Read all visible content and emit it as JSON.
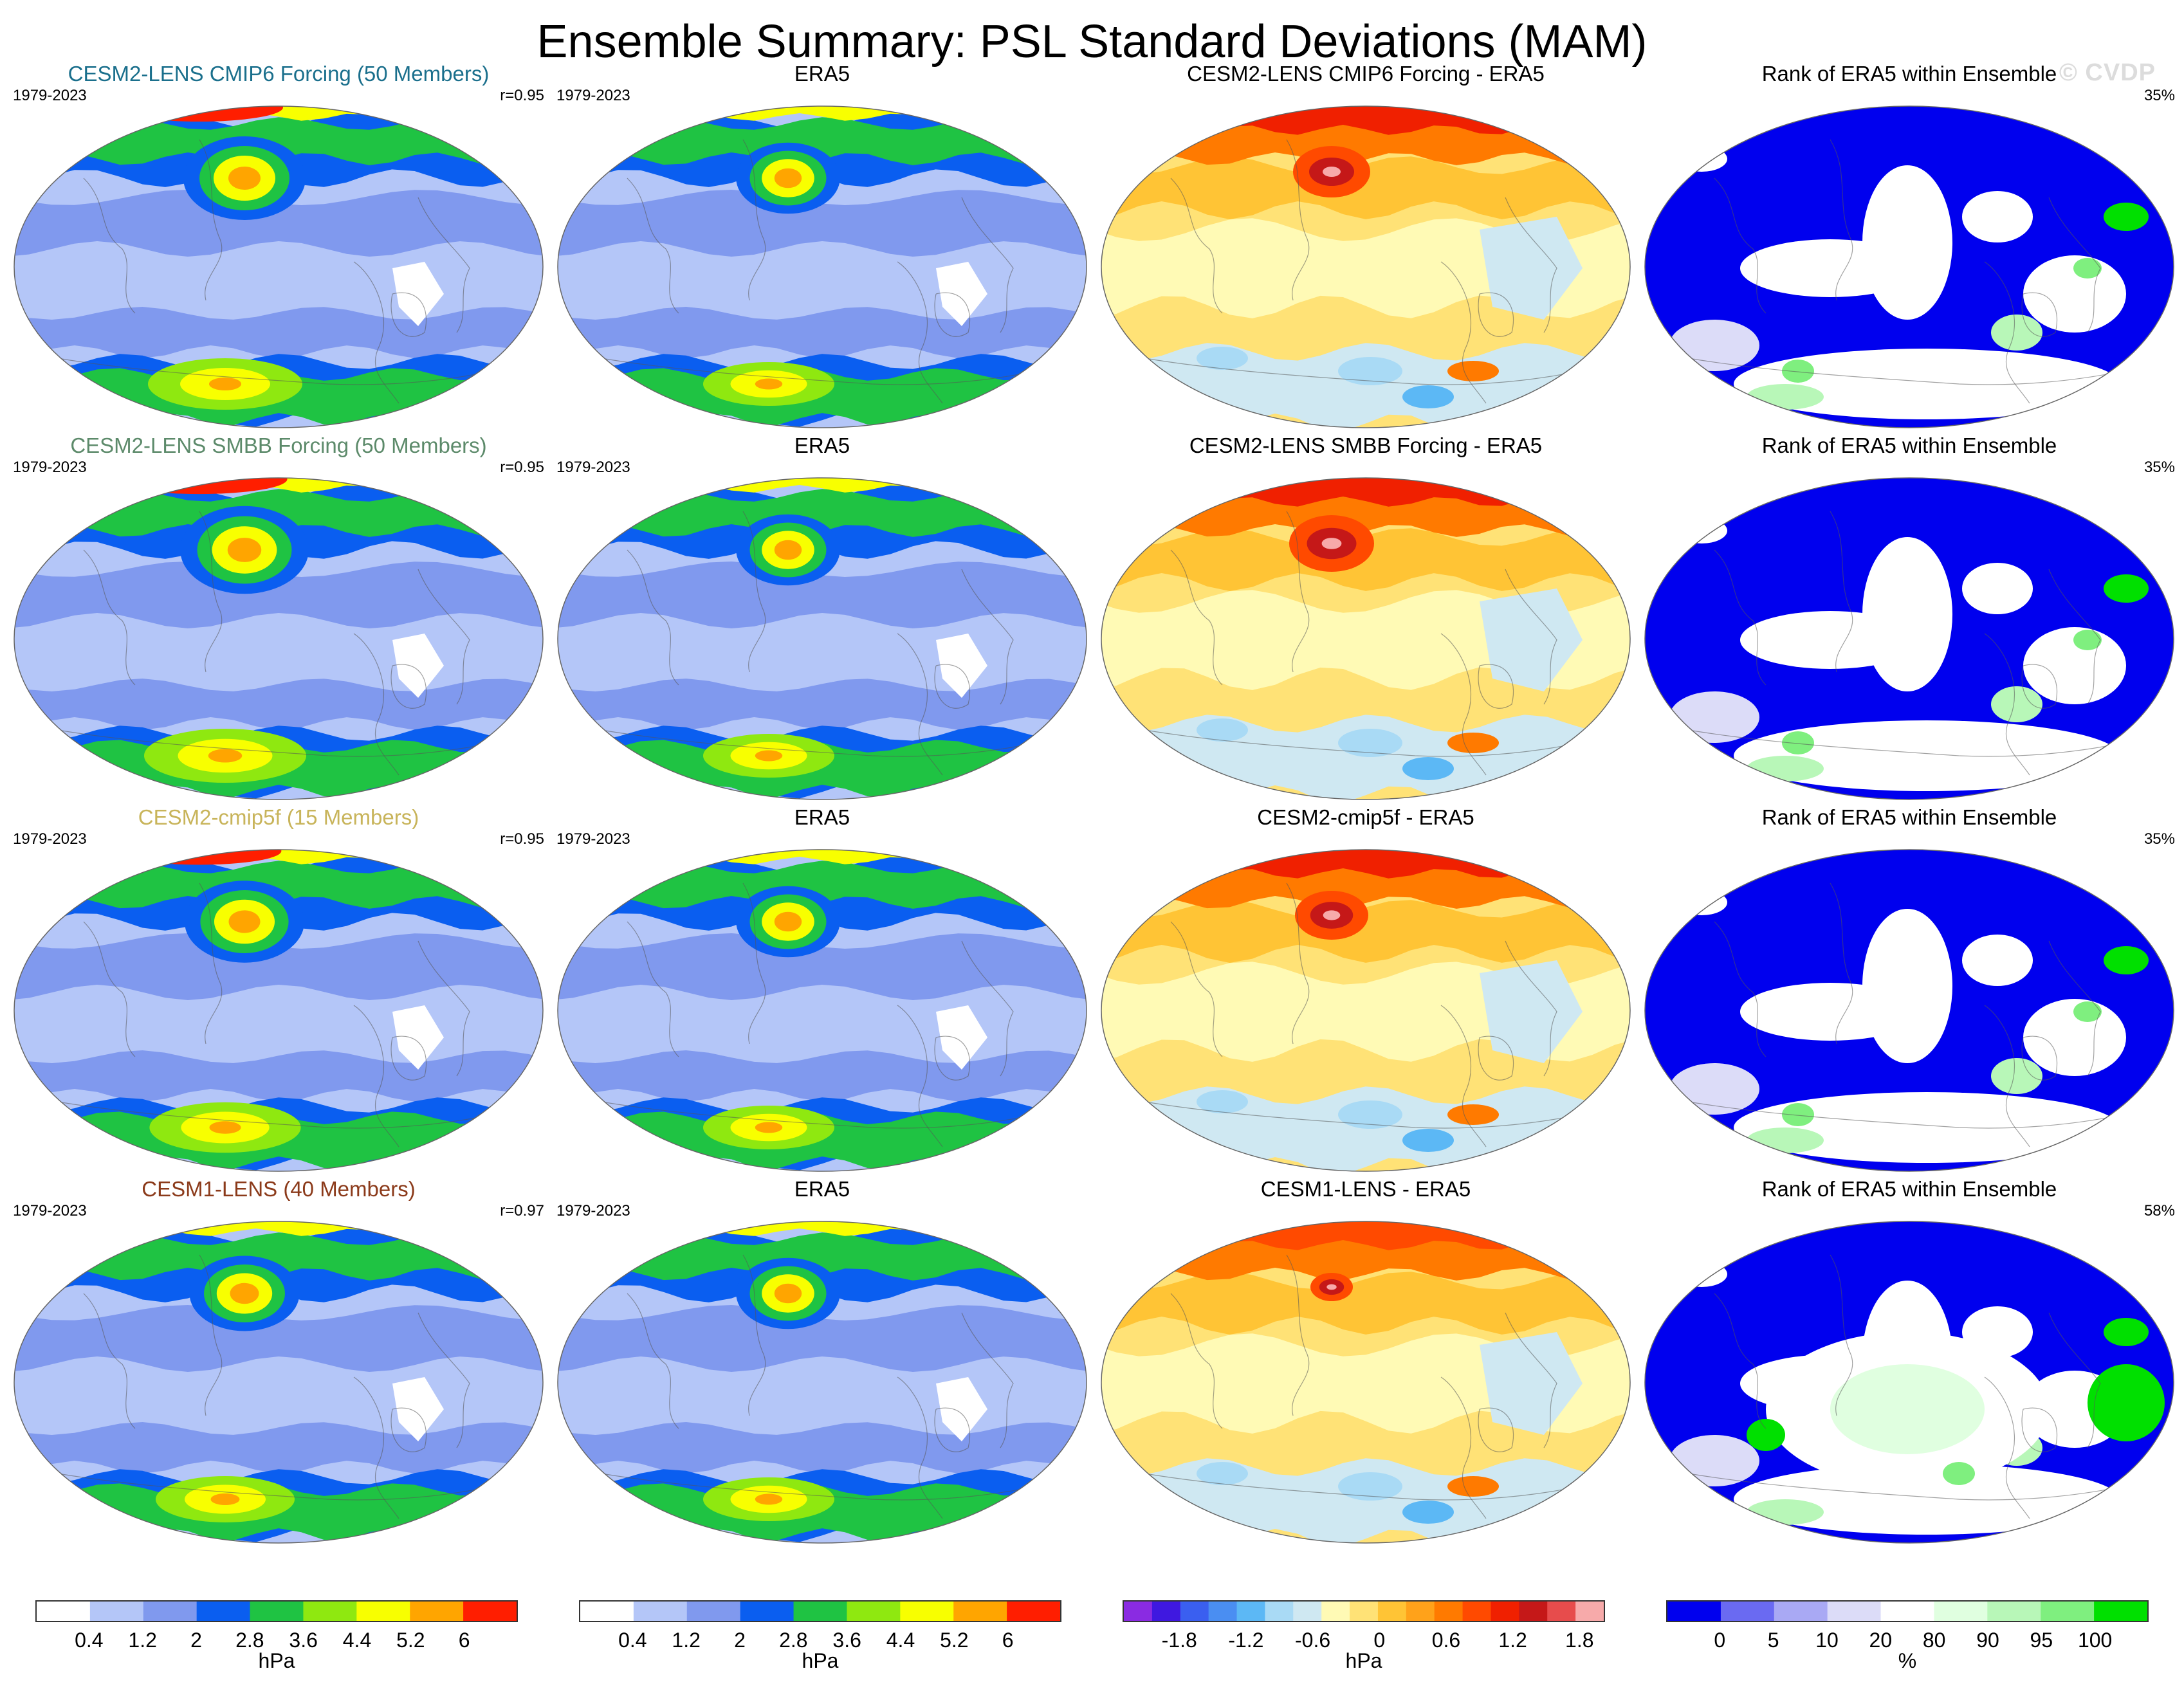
{
  "title": "Ensemble Summary: PSL Standard Deviations (MAM)",
  "watermark": "© CVDP",
  "colors": {
    "sd": [
      "#ffffff",
      "#b4c6f8",
      "#8099ee",
      "#0a5ef0",
      "#1fc343",
      "#8fe810",
      "#f8ff00",
      "#ffa500",
      "#ff1e00"
    ],
    "diff": [
      "#8a2be2",
      "#3f18e0",
      "#3a5ff0",
      "#4a8ef2",
      "#5cb8f5",
      "#a9daf5",
      "#cfe8f2",
      "#fffab5",
      "#ffe276",
      "#ffc435",
      "#ffa21a",
      "#ff7a00",
      "#ff4a00",
      "#f02000",
      "#c51818",
      "#e74c4c",
      "#f7aaaa"
    ],
    "rank": [
      "#0000ee",
      "#6a6af2",
      "#a9a9f4",
      "#dcdcf8",
      "#ffffff",
      "#e0ffe0",
      "#b8f7b8",
      "#7fef7f",
      "#00e000"
    ]
  },
  "colorbars": {
    "sd_ticks": [
      "0.4",
      "1.2",
      "2",
      "2.8",
      "3.6",
      "4.4",
      "5.2",
      "6"
    ],
    "diff_ticks": [
      "-1.8",
      "-1.2",
      "-0.6",
      "0",
      "0.6",
      "1.2",
      "1.8"
    ],
    "rank_ticks": [
      "0",
      "5",
      "10",
      "20",
      "80",
      "90",
      "95",
      "100"
    ],
    "sd_unit": "hPa",
    "diff_unit": "hPa",
    "rank_unit": "%"
  },
  "chart_data": [
    {
      "type": "heatmap",
      "row_label": "CESM2-LENS CMIP6 Forcing (50 Members)",
      "title_color": "#1a6f8c",
      "panels": [
        {
          "title": "CESM2-LENS CMIP6 Forcing (50 Members)",
          "left_label": "1979-2023",
          "right_label": "r=0.95",
          "kind": "sd",
          "strength": 1.0
        },
        {
          "title": "ERA5",
          "left_label": "1979-2023",
          "right_label": "",
          "kind": "sd",
          "strength": 0.85
        },
        {
          "title": "CESM2-LENS CMIP6 Forcing - ERA5",
          "left_label": "",
          "right_label": "",
          "kind": "diff",
          "strength": 1.0
        },
        {
          "title": "Rank of ERA5 within Ensemble",
          "left_label": "",
          "right_label": "35%",
          "kind": "rank",
          "strength": 0.35
        }
      ]
    },
    {
      "type": "heatmap",
      "row_label": "CESM2-LENS SMBB Forcing (50 Members)",
      "title_color": "#5c8a6a",
      "panels": [
        {
          "title": "CESM2-LENS SMBB Forcing (50 Members)",
          "left_label": "1979-2023",
          "right_label": "r=0.95",
          "kind": "sd",
          "strength": 1.05
        },
        {
          "title": "ERA5",
          "left_label": "1979-2023",
          "right_label": "",
          "kind": "sd",
          "strength": 0.85
        },
        {
          "title": "CESM2-LENS SMBB Forcing - ERA5",
          "left_label": "",
          "right_label": "",
          "kind": "diff",
          "strength": 1.1
        },
        {
          "title": "Rank of ERA5 within Ensemble",
          "left_label": "",
          "right_label": "35%",
          "kind": "rank",
          "strength": 0.35
        }
      ]
    },
    {
      "type": "heatmap",
      "row_label": "CESM2-cmip5f (15 Members)",
      "title_color": "#c8b45a",
      "panels": [
        {
          "title": "CESM2-cmip5f (15 Members)",
          "left_label": "1979-2023",
          "right_label": "r=0.95",
          "kind": "sd",
          "strength": 0.98
        },
        {
          "title": "ERA5",
          "left_label": "1979-2023",
          "right_label": "",
          "kind": "sd",
          "strength": 0.85
        },
        {
          "title": "CESM2-cmip5f - ERA5",
          "left_label": "",
          "right_label": "",
          "kind": "diff",
          "strength": 0.95
        },
        {
          "title": "Rank of ERA5 within Ensemble",
          "left_label": "",
          "right_label": "35%",
          "kind": "rank",
          "strength": 0.35
        }
      ]
    },
    {
      "type": "heatmap",
      "row_label": "CESM1-LENS (40 Members)",
      "title_color": "#8b3a1a",
      "panels": [
        {
          "title": "CESM1-LENS (40 Members)",
          "left_label": "1979-2023",
          "right_label": "r=0.97",
          "kind": "sd",
          "strength": 0.9
        },
        {
          "title": "ERA5",
          "left_label": "1979-2023",
          "right_label": "",
          "kind": "sd",
          "strength": 0.85
        },
        {
          "title": "CESM1-LENS - ERA5",
          "left_label": "",
          "right_label": "",
          "kind": "diff",
          "strength": 0.55
        },
        {
          "title": "Rank of ERA5 within Ensemble",
          "left_label": "",
          "right_label": "58%",
          "kind": "rank",
          "strength": 0.58
        }
      ]
    }
  ]
}
